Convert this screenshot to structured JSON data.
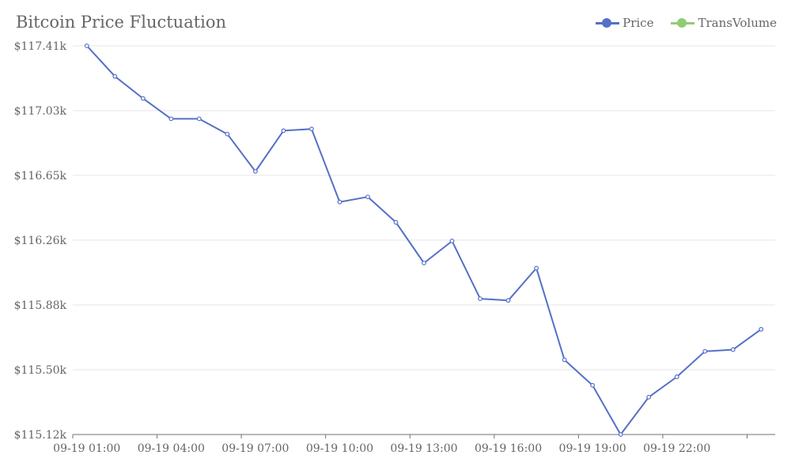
{
  "chart_data": {
    "type": "line",
    "title": "Bitcoin Price Fluctuation",
    "legend": {
      "placement": "top-right",
      "entries": [
        {
          "label": "Price",
          "color": "#5470c6"
        },
        {
          "label": "TransVolume",
          "color": "#91cc75"
        }
      ]
    },
    "y_ticks": [
      "$115.12k",
      "$115.50k",
      "$115.88k",
      "$116.26k",
      "$116.65k",
      "$117.03k",
      "$117.41k"
    ],
    "ylim": [
      115.12,
      117.41
    ],
    "x_tick_labels": [
      "09-19 01:00",
      "09-19 04:00",
      "09-19 07:00",
      "09-19 10:00",
      "09-19 13:00",
      "09-19 16:00",
      "09-19 19:00",
      "09-19 22:00"
    ],
    "grid": true,
    "series": [
      {
        "name": "Price",
        "color": "#5470c6",
        "values": [
          117.41,
          117.23,
          117.1,
          116.98,
          116.98,
          116.89,
          116.67,
          116.91,
          116.92,
          116.49,
          116.52,
          116.37,
          116.13,
          116.26,
          115.92,
          115.91,
          116.1,
          115.56,
          115.41,
          115.12,
          115.34,
          115.46,
          115.61,
          115.62,
          115.74
        ]
      }
    ]
  }
}
